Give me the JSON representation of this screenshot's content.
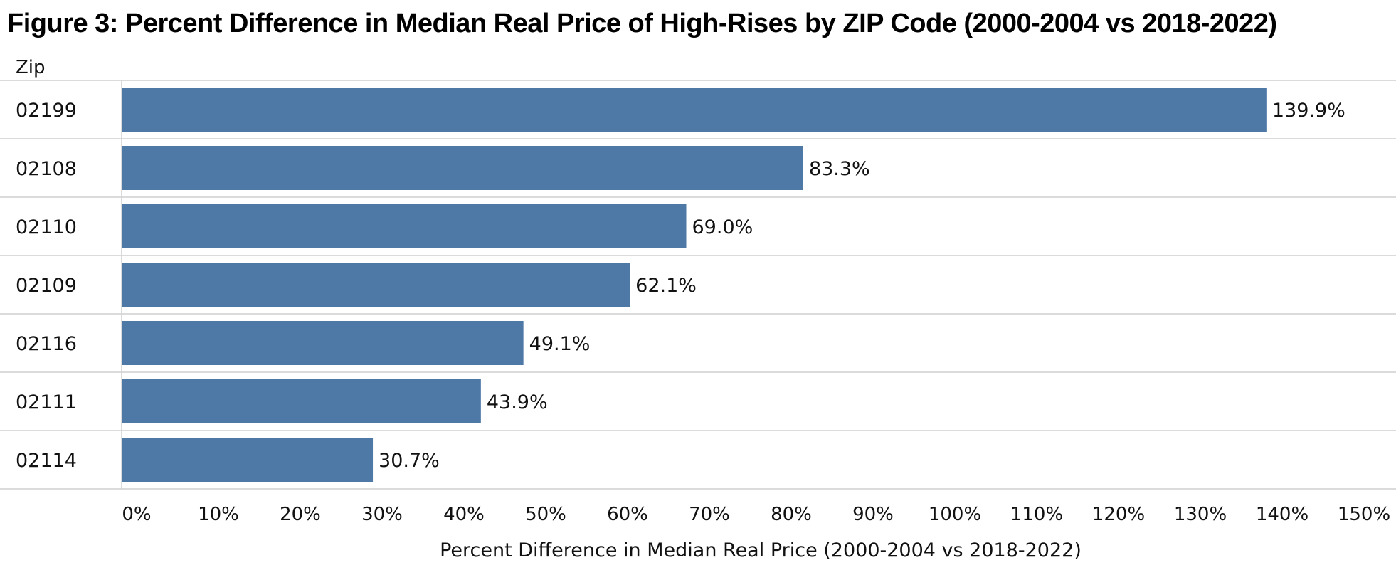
{
  "figure_title": "Figure 3: Percent Difference in Median Real Price of High-Rises by ZIP Code (2000-2004 vs 2018-2022)",
  "chart_data": {
    "type": "bar",
    "orientation": "horizontal",
    "row_header": "Zip",
    "categories": [
      "02199",
      "02108",
      "02110",
      "02109",
      "02116",
      "02111",
      "02114"
    ],
    "values": [
      139.9,
      83.3,
      69.0,
      62.1,
      49.1,
      43.9,
      30.7
    ],
    "value_labels": [
      "139.9%",
      "83.3%",
      "69.0%",
      "62.1%",
      "49.1%",
      "43.9%",
      "30.7%"
    ],
    "xlabel": "Percent Difference in Median Real Price (2000-2004 vs 2018-2022)",
    "xlim": [
      0,
      150
    ],
    "x_ticks": [
      0,
      10,
      20,
      30,
      40,
      50,
      60,
      70,
      80,
      90,
      100,
      110,
      120,
      130,
      140,
      150
    ],
    "x_tick_labels": [
      "0%",
      "10%",
      "20%",
      "30%",
      "40%",
      "50%",
      "60%",
      "70%",
      "80%",
      "90%",
      "100%",
      "110%",
      "120%",
      "130%",
      "140%",
      "150%"
    ],
    "bar_color": "#4e79a7",
    "grid": false,
    "legend": "none"
  }
}
